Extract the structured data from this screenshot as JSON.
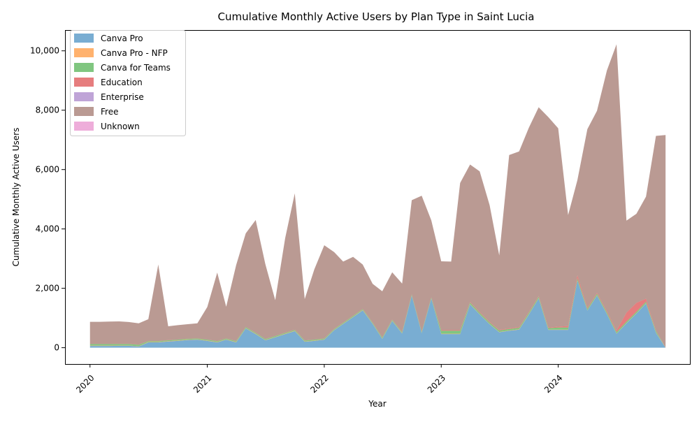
{
  "chart_data": {
    "type": "area",
    "stacked": true,
    "title": "Cumulative Monthly Active Users by Plan Type in Saint Lucia",
    "xlabel": "Year",
    "ylabel": "Cumulative Monthly Active Users",
    "x_ticks": [
      "2020",
      "2021",
      "2022",
      "2023",
      "2024"
    ],
    "y_ticks": [
      "0",
      "2,000",
      "4,000",
      "6,000",
      "8,000",
      "10,000"
    ],
    "y_tick_values": [
      0,
      2000,
      4000,
      6000,
      8000,
      10000
    ],
    "ylim": [
      -550,
      10700
    ],
    "xlim": [
      "2019-10-15",
      "2025-02-15"
    ],
    "legend_position": "top-left",
    "grid": false,
    "x": [
      "2020-01",
      "2020-02",
      "2020-03",
      "2020-04",
      "2020-05",
      "2020-06",
      "2020-07",
      "2020-08",
      "2020-09",
      "2020-10",
      "2020-11",
      "2020-12",
      "2021-01",
      "2021-02",
      "2021-03",
      "2021-04",
      "2021-05",
      "2021-06",
      "2021-07",
      "2021-08",
      "2021-09",
      "2021-10",
      "2021-11",
      "2021-12",
      "2022-01",
      "2022-02",
      "2022-03",
      "2022-04",
      "2022-05",
      "2022-06",
      "2022-07",
      "2022-08",
      "2022-09",
      "2022-10",
      "2022-11",
      "2022-12",
      "2023-01",
      "2023-02",
      "2023-03",
      "2023-04",
      "2023-05",
      "2023-06",
      "2023-07",
      "2023-08",
      "2023-09",
      "2023-10",
      "2023-11",
      "2023-12",
      "2024-01",
      "2024-02",
      "2024-03",
      "2024-04",
      "2024-05",
      "2024-06",
      "2024-07",
      "2024-08",
      "2024-09",
      "2024-10",
      "2024-11",
      "2024-12"
    ],
    "series": [
      {
        "name": "Canva Pro",
        "color": "#1f77b4",
        "values": [
          60,
          60,
          60,
          65,
          65,
          40,
          180,
          180,
          210,
          230,
          260,
          270,
          230,
          180,
          270,
          180,
          650,
          460,
          250,
          350,
          460,
          560,
          200,
          230,
          270,
          590,
          800,
          1030,
          1260,
          800,
          300,
          900,
          480,
          1750,
          490,
          1650,
          460,
          460,
          460,
          1460,
          1120,
          790,
          520,
          570,
          610,
          1110,
          1660,
          600,
          600,
          600,
          2260,
          1250,
          1760,
          1130,
          470,
          820,
          1150,
          1490,
          500,
          0
        ]
      },
      {
        "name": "Canva Pro - NFP",
        "color": "#ff7f0e",
        "values": [
          10,
          10,
          10,
          10,
          10,
          10,
          10,
          10,
          10,
          10,
          10,
          10,
          10,
          10,
          10,
          10,
          10,
          10,
          10,
          10,
          10,
          10,
          10,
          10,
          10,
          10,
          10,
          10,
          10,
          10,
          10,
          10,
          10,
          10,
          10,
          10,
          10,
          10,
          10,
          10,
          10,
          10,
          10,
          10,
          10,
          10,
          10,
          10,
          10,
          10,
          10,
          10,
          10,
          10,
          10,
          10,
          10,
          10,
          10,
          10
        ]
      },
      {
        "name": "Canva for Teams",
        "color": "#2ca02c",
        "values": [
          50,
          50,
          50,
          50,
          50,
          50,
          30,
          30,
          30,
          30,
          30,
          30,
          30,
          30,
          30,
          30,
          30,
          30,
          30,
          30,
          30,
          30,
          30,
          30,
          30,
          30,
          30,
          30,
          30,
          30,
          30,
          30,
          30,
          30,
          30,
          30,
          100,
          100,
          100,
          50,
          50,
          50,
          50,
          50,
          50,
          50,
          50,
          50,
          70,
          70,
          70,
          50,
          50,
          50,
          50,
          50,
          50,
          50,
          50,
          0
        ]
      },
      {
        "name": "Education",
        "color": "#d62728",
        "values": [
          5,
          5,
          5,
          5,
          5,
          5,
          5,
          5,
          5,
          5,
          5,
          5,
          5,
          5,
          5,
          5,
          5,
          5,
          5,
          5,
          5,
          5,
          5,
          5,
          5,
          5,
          5,
          5,
          5,
          5,
          5,
          5,
          5,
          5,
          5,
          5,
          20,
          20,
          20,
          20,
          20,
          20,
          20,
          20,
          20,
          20,
          20,
          20,
          30,
          50,
          100,
          30,
          30,
          30,
          50,
          300,
          300,
          100,
          5,
          5
        ]
      },
      {
        "name": "Enterprise",
        "color": "#9467bd",
        "values": [
          0,
          0,
          0,
          0,
          0,
          0,
          0,
          0,
          0,
          0,
          0,
          0,
          0,
          0,
          0,
          0,
          0,
          0,
          0,
          0,
          0,
          0,
          0,
          0,
          0,
          0,
          0,
          0,
          0,
          0,
          0,
          0,
          0,
          0,
          0,
          0,
          0,
          0,
          0,
          0,
          0,
          0,
          0,
          0,
          0,
          0,
          0,
          0,
          0,
          0,
          0,
          0,
          0,
          0,
          0,
          0,
          0,
          0,
          0,
          0
        ]
      },
      {
        "name": "Free",
        "color": "#8c564b",
        "values": [
          745,
          745,
          755,
          755,
          735,
          715,
          735,
          2575,
          465,
          485,
          485,
          505,
          1095,
          2305,
          1065,
          2555,
          3155,
          3795,
          2525,
          1205,
          3185,
          4595,
          1395,
          2365,
          3135,
          2585,
          2055,
          1985,
          1495,
          1305,
          1555,
          1595,
          1635,
          3175,
          4585,
          2595,
          2320,
          2310,
          4960,
          4630,
          4740,
          3930,
          2510,
          5840,
          5920,
          6210,
          6360,
          7090,
          6680,
          3740,
          3210,
          6020,
          6130,
          8120,
          9640,
          3100,
          3000,
          3440,
          6570,
          7150
        ]
      },
      {
        "name": "Unknown",
        "color": "#e377c2",
        "values": [
          0,
          0,
          0,
          0,
          0,
          0,
          0,
          0,
          0,
          0,
          0,
          0,
          0,
          0,
          0,
          0,
          0,
          0,
          0,
          0,
          0,
          0,
          0,
          0,
          0,
          0,
          0,
          0,
          0,
          0,
          0,
          0,
          0,
          0,
          0,
          0,
          0,
          0,
          0,
          0,
          0,
          0,
          0,
          0,
          0,
          0,
          0,
          0,
          0,
          0,
          0,
          0,
          0,
          0,
          0,
          0,
          0,
          0,
          0,
          0
        ]
      }
    ]
  }
}
